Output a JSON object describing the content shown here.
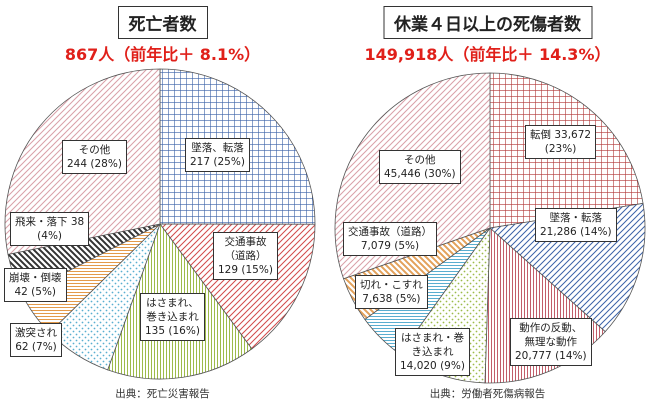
{
  "colors": {
    "accent_red": "#e0201a"
  },
  "chart_data": [
    {
      "type": "pie",
      "title": "死亡者数",
      "subtitle": "867人（前年比＋ 8.1%）",
      "source": "出典：死亡災害報告",
      "slices": [
        {
          "label": "墜落、転落",
          "value": 217,
          "value_text": "217 (25%)",
          "percent": 25,
          "fill": "#3b62a8"
        },
        {
          "label": "交通事故（道路）",
          "value": 129,
          "value_text": "129 (15%)",
          "percent": 15,
          "fill": "#d24a4a"
        },
        {
          "label": "はさまれ、巻き込まれ",
          "value": 135,
          "value_text": "135 (16%)",
          "percent": 16,
          "fill": "#9dbb4a"
        },
        {
          "label": "激突され",
          "value": 62,
          "value_text": "62 (7%)",
          "percent": 7,
          "fill": "#5aaed0"
        },
        {
          "label": "崩壊・倒壊",
          "value": 42,
          "value_text": "42 (5%)",
          "percent": 5,
          "fill": "#e39a4a"
        },
        {
          "label": "飛来・落下",
          "value": 38,
          "value_text": "38 (4%)",
          "percent": 4,
          "fill": "#333333"
        },
        {
          "label": "その他",
          "value": 244,
          "value_text": "244 (28%)",
          "percent": 28,
          "fill": "#d9a0a8"
        }
      ]
    },
    {
      "type": "pie",
      "title": "休業４日以上の死傷者数",
      "subtitle": "149,918人（前年比＋ 14.3%）",
      "source": "出典：労働者死傷病報告",
      "slices": [
        {
          "label": "転倒",
          "value": 33672,
          "value_text": "33,672 (23%)",
          "percent": 23,
          "fill": "#b23838"
        },
        {
          "label": "墜落・転落",
          "value": 21286,
          "value_text": "21,286 (14%)",
          "percent": 14,
          "fill": "#3b62a8"
        },
        {
          "label": "動作の反動、無理な動作",
          "value": 20777,
          "value_text": "20,777 (14%)",
          "percent": 14,
          "fill": "#c25e6a"
        },
        {
          "label": "はさまれ・巻き込まれ",
          "value": 14020,
          "value_text": "14,020 (9%)",
          "percent": 9,
          "fill": "#9dbb4a"
        },
        {
          "label": "切れ・こすれ",
          "value": 7638,
          "value_text": "7,638 (5%)",
          "percent": 5,
          "fill": "#5aaed0"
        },
        {
          "label": "交通事故（道路）",
          "value": 7079,
          "value_text": "7,079 (5%)",
          "percent": 5,
          "fill": "#e3a15a"
        },
        {
          "label": "その他",
          "value": 45446,
          "value_text": "45,446 (30%)",
          "percent": 30,
          "fill": "#d9a0a8"
        }
      ]
    }
  ],
  "labels_text": {
    "left": [
      "墜落、転落\n217 (25%)",
      "交通事故\n（道路）\n129 (15%)",
      "はさまれ、\n巻き込まれ\n135 (16%)",
      "激突され\n62 (7%)",
      "崩壊・倒壊\n42 (5%)",
      "飛来・落下 38\n(4%)",
      "その他\n244 (28%)"
    ],
    "right": [
      "転倒 33,672\n(23%)",
      "墜落・転落\n21,286 (14%)",
      "動作の反動、\n無理な動作\n20,777 (14%)",
      "はさまれ・巻\nき込まれ\n14,020 (9%)",
      "切れ・こすれ\n7,638 (5%)",
      "交通事故（道路）\n7,079 (5%)",
      "その他\n45,446 (30%)"
    ]
  }
}
